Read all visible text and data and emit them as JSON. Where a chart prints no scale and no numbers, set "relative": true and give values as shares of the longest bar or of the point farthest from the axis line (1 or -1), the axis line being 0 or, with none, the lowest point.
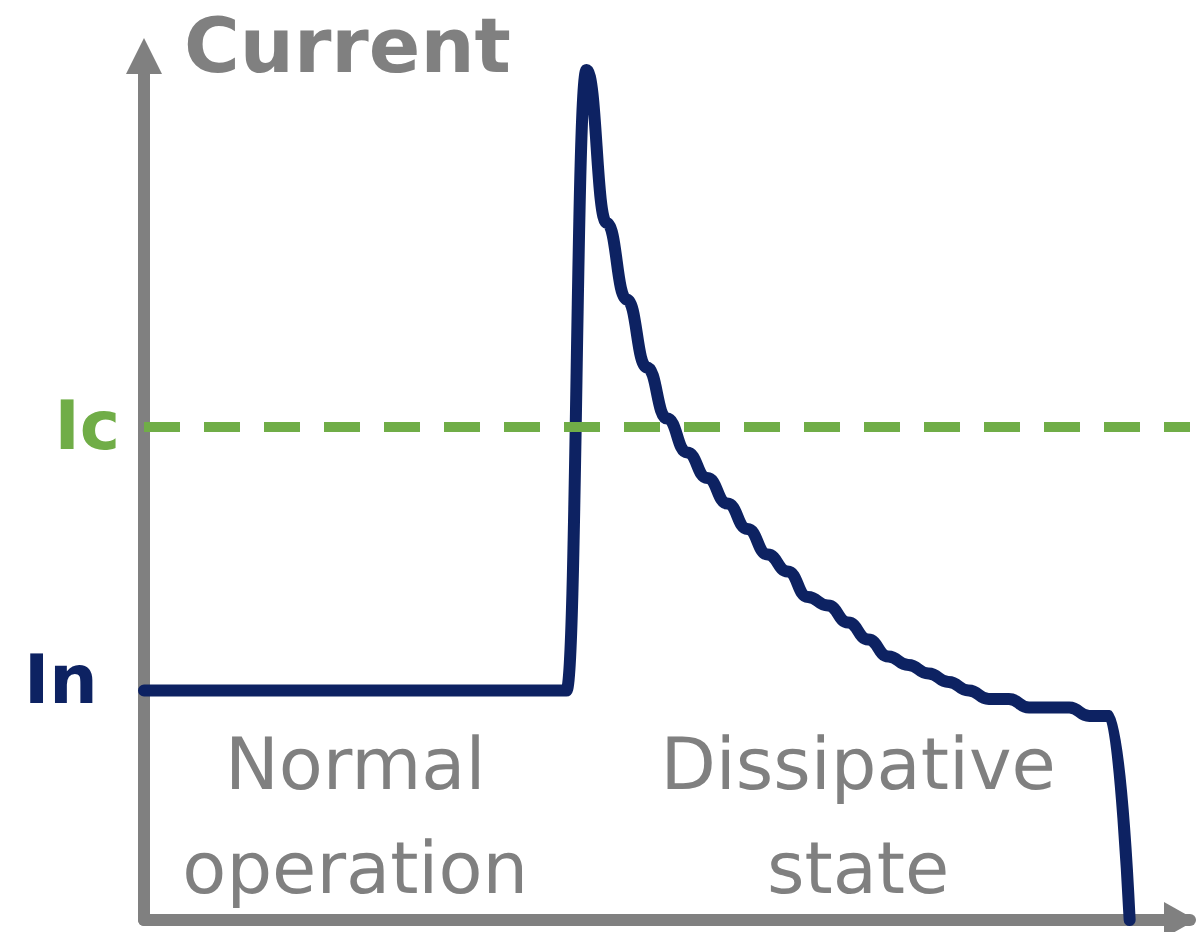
{
  "chart_data": {
    "type": "line",
    "relative": true,
    "ylabel": "Current",
    "line_style": "solid",
    "categories": [
      null,
      null,
      null,
      null,
      null,
      null,
      null,
      null,
      null,
      null,
      null,
      null,
      null,
      null,
      null,
      null,
      null,
      null,
      null,
      null,
      null,
      null,
      null,
      null,
      null,
      null,
      null,
      null,
      null,
      null,
      null,
      null,
      null,
      null,
      null,
      null,
      null,
      null,
      null,
      null,
      null,
      null,
      null,
      null,
      null,
      null,
      null,
      null,
      null,
      null,
      null,
      null,
      null
    ],
    "series": [
      {
        "color": "#0d2262",
        "values": [
          0.27,
          0.27,
          0.27,
          0.27,
          0.27,
          0.27,
          0.27,
          0.27,
          0.27,
          0.27,
          0.27,
          0.27,
          0.27,
          0.27,
          0.27,
          0.27,
          0.27,
          0.27,
          0.27,
          0.27,
          0.27,
          0.27,
          1.0,
          0.82,
          0.73,
          0.65,
          0.59,
          0.55,
          0.52,
          0.49,
          0.46,
          0.43,
          0.41,
          0.38,
          0.37,
          0.35,
          0.33,
          0.31,
          0.3,
          0.29,
          0.28,
          0.27,
          0.26,
          0.26,
          0.25,
          0.25,
          0.25,
          0.24,
          0.24,
          0,
          null,
          null,
          null
        ]
      }
    ],
    "ref_lines": [
      {
        "axis": "y",
        "value": 0.58,
        "label": "Ic",
        "color": "#70ad47",
        "line_style": "dashed"
      }
    ],
    "annotations": [
      "In",
      "Normal operation",
      "Dissipative state"
    ]
  }
}
